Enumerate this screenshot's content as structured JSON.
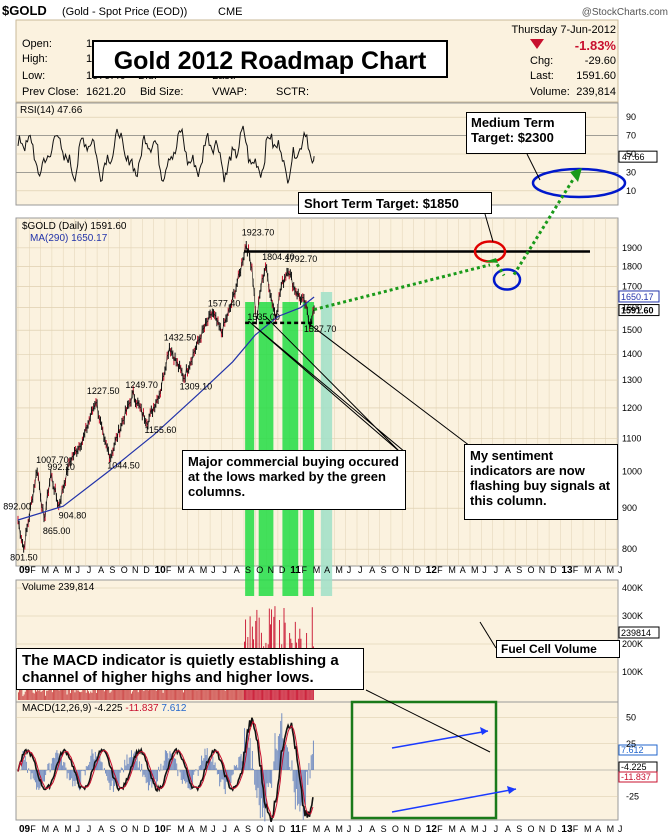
{
  "header": {
    "symbol": "$GOLD",
    "name": "(Gold - Spot Price (EOD))",
    "exchange": "CME",
    "watermark": "@StockCharts.com",
    "date": "Thursday   7-Jun-2012",
    "change_pct": "-1.83%",
    "fields": [
      {
        "label": "Open:",
        "value": "1"
      },
      {
        "label": "High:",
        "value": "1"
      },
      {
        "label": "Low:",
        "value": "1579.40"
      },
      {
        "label": "Prev Close:",
        "value": "1621.20"
      }
    ],
    "mid_fields": [
      "Bid:",
      "Bid Size:"
    ],
    "mid2_fields": [
      "Last:",
      "VWAP:"
    ],
    "sctr": "SCTR:",
    "right_fields": [
      {
        "label": "Chg:",
        "value": "-29.60"
      },
      {
        "label": "Last:",
        "value": "1591.60"
      },
      {
        "label": "Volume:",
        "value": "239,814"
      }
    ]
  },
  "title": "Gold 2012 Roadmap Chart",
  "rsi_label": "RSI(14) 47.66",
  "price_label": "$GOLD (Daily) 1591.60",
  "ma_label": "MA(290) 1650.17",
  "volume_label": "Volume 239,814",
  "macd_label": {
    "name": "MACD(12,26,9)",
    "v1": "-4.225",
    "v2": "-11.837",
    "v3": "7.612"
  },
  "callouts": {
    "medium_term": "Medium Term Target: $2300",
    "short_term": "Short Term Target: $1850",
    "commercial": "Major commercial buying occured at the lows marked by the green columns.",
    "sentiment": "My sentiment indicators are now flashing buy signals at this column.",
    "macd": "The MACD indicator is quietly establishing a channel of higher highs and higher lows.",
    "fuel": "Fuel Cell Volume"
  },
  "chart_data": {
    "type": "line",
    "title": "Gold 2012 Roadmap Chart",
    "price_axis": {
      "ylim": [
        780,
        2000
      ],
      "ticks": [
        800,
        900,
        1000,
        1100,
        1200,
        1300,
        1400,
        1500,
        1600,
        1700,
        1800,
        1900
      ]
    },
    "rsi_axis": {
      "ylim": [
        0,
        100
      ],
      "ticks": [
        10,
        30,
        50,
        70,
        90
      ],
      "current": "47.66"
    },
    "volume_axis": {
      "ticks": [
        "100K",
        "200K",
        "300K",
        "400K"
      ],
      "current": "239814"
    },
    "macd_axis": {
      "ticks": [
        50,
        25,
        -25
      ],
      "values": [
        "7.612",
        "-4.225",
        "-11.837"
      ]
    },
    "x_months": [
      "09",
      "F",
      "M",
      "A",
      "M",
      "J",
      "J",
      "A",
      "S",
      "O",
      "N",
      "D",
      "10",
      "F",
      "M",
      "A",
      "M",
      "J",
      "J",
      "A",
      "S",
      "O",
      "N",
      "D",
      "11",
      "F",
      "M",
      "A",
      "M",
      "J",
      "J",
      "A",
      "S",
      "O",
      "N",
      "D",
      "12",
      "F",
      "M",
      "A",
      "M",
      "J",
      "J",
      "A",
      "S",
      "O",
      "N",
      "D",
      "13",
      "F",
      "M",
      "A",
      "M",
      "J"
    ],
    "price_anchors": [
      [
        0,
        870
      ],
      [
        0.5,
        801.5
      ],
      [
        1,
        880
      ],
      [
        1.7,
        1007.7
      ],
      [
        2.3,
        865
      ],
      [
        2.9,
        992.1
      ],
      [
        3.6,
        904.8
      ],
      [
        4.6,
        1030
      ],
      [
        5.8,
        1100
      ],
      [
        6.9,
        1227.5
      ],
      [
        7.6,
        1090
      ],
      [
        8.2,
        1044.5
      ],
      [
        9.2,
        1150
      ],
      [
        10.2,
        1249.7
      ],
      [
        11,
        1180
      ],
      [
        11.5,
        1155.6
      ],
      [
        12.6,
        1260
      ],
      [
        13.4,
        1432.5
      ],
      [
        14.1,
        1360
      ],
      [
        14.7,
        1309.1
      ],
      [
        15.5,
        1400
      ],
      [
        16.4,
        1500
      ],
      [
        17.2,
        1577.4
      ],
      [
        18,
        1490
      ],
      [
        18.8,
        1600
      ],
      [
        19.6,
        1760
      ],
      [
        20.2,
        1923.7
      ],
      [
        20.7,
        1800
      ],
      [
        21.1,
        1535
      ],
      [
        21.5,
        1700
      ],
      [
        21.9,
        1804.4
      ],
      [
        22.4,
        1650
      ],
      [
        22.8,
        1560
      ],
      [
        23.3,
        1700
      ],
      [
        23.9,
        1792.7
      ],
      [
        24.4,
        1700
      ],
      [
        24.9,
        1650
      ],
      [
        25.4,
        1620
      ],
      [
        25.8,
        1527.7
      ],
      [
        26.2,
        1591.6
      ]
    ],
    "price_labels": [
      "1923.70",
      "1804.40",
      "1792.70",
      "1577.40",
      "1432.50",
      "1249.70",
      "1227.50",
      "1309.10",
      "1155.60",
      "1044.50",
      "1007.70",
      "992.10",
      "904.80",
      "892.00",
      "865.00",
      "801.50",
      "1535.00",
      "1527.70"
    ],
    "last_price": "1591.60",
    "ma_value": "1650.17",
    "ma290_anchors": [
      [
        0,
        870
      ],
      [
        4,
        905
      ],
      [
        8,
        1000
      ],
      [
        12,
        1110
      ],
      [
        16,
        1250
      ],
      [
        19,
        1370
      ],
      [
        21,
        1480
      ],
      [
        23,
        1560
      ],
      [
        25,
        1600
      ],
      [
        26.2,
        1650.17
      ]
    ],
    "resistance_level": 1880,
    "support_level": 1532,
    "targets": {
      "short_term": 1850,
      "medium_term": 2300
    }
  }
}
